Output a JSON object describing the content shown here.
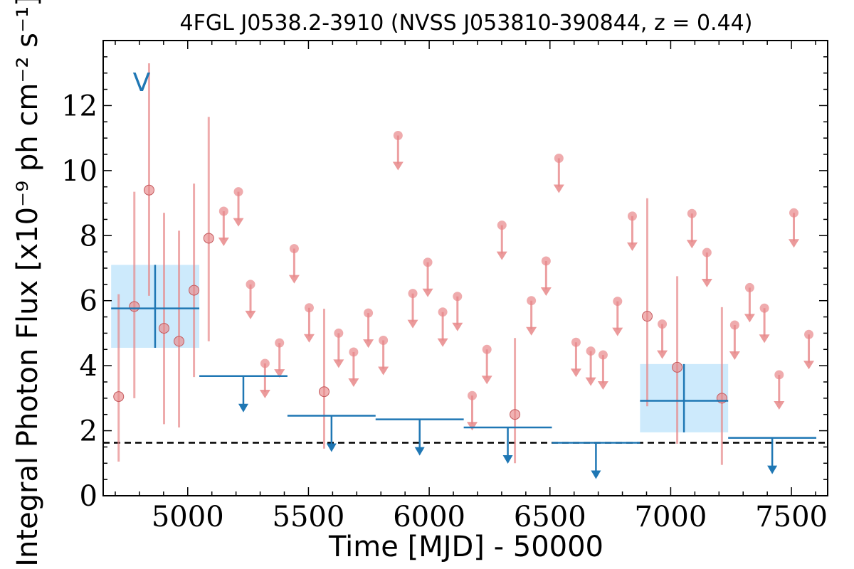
{
  "chart_data": {
    "type": "scatter",
    "title": "4FGL J0538.2-3910 (NVSS J053810-390844, z = 0.44)",
    "xlabel": "Time [MJD] - 50000",
    "ylabel": "Integral Photon Flux [x10⁻⁹ ph cm⁻² s⁻¹]",
    "xlim": [
      4650,
      7650
    ],
    "ylim": [
      0,
      14
    ],
    "x_ticks": [
      5000,
      5500,
      6000,
      6500,
      7000,
      7500
    ],
    "y_ticks": [
      0,
      2,
      4,
      6,
      8,
      10,
      12
    ],
    "marker_label": "V",
    "baseline": 1.63,
    "colors": {
      "short_bins": "#e8888a",
      "long_bins": "#1f77b4",
      "highlight": "#cdeafc",
      "baseline": "#000000"
    },
    "short_detections": [
      {
        "x": 4714,
        "y": 3.05,
        "lo": 1.05,
        "hi": 6.2
      },
      {
        "x": 4779,
        "y": 5.82,
        "lo": 3.0,
        "hi": 9.35
      },
      {
        "x": 4840,
        "y": 9.4,
        "lo": 6.15,
        "hi": 13.3
      },
      {
        "x": 4902,
        "y": 5.15,
        "lo": 2.2,
        "hi": 8.7
      },
      {
        "x": 4964,
        "y": 4.75,
        "lo": 2.1,
        "hi": 8.15
      },
      {
        "x": 5026,
        "y": 6.32,
        "lo": 3.65,
        "hi": 9.6
      },
      {
        "x": 5087,
        "y": 7.92,
        "lo": 4.75,
        "hi": 11.65
      },
      {
        "x": 5565,
        "y": 3.2,
        "lo": 1.45,
        "hi": 5.75
      },
      {
        "x": 6355,
        "y": 2.5,
        "lo": 1.0,
        "hi": 4.85
      },
      {
        "x": 6903,
        "y": 5.52,
        "lo": 2.75,
        "hi": 9.15
      },
      {
        "x": 7027,
        "y": 3.95,
        "lo": 1.6,
        "hi": 6.75
      },
      {
        "x": 7212,
        "y": 3.0,
        "lo": 0.95,
        "hi": 5.8
      }
    ],
    "short_upper_limits": [
      {
        "x": 5149,
        "y": 8.75
      },
      {
        "x": 5210,
        "y": 9.35
      },
      {
        "x": 5260,
        "y": 6.5
      },
      {
        "x": 5320,
        "y": 4.07
      },
      {
        "x": 5380,
        "y": 4.7
      },
      {
        "x": 5441,
        "y": 7.6
      },
      {
        "x": 5503,
        "y": 5.78
      },
      {
        "x": 5625,
        "y": 5.0
      },
      {
        "x": 5687,
        "y": 4.42
      },
      {
        "x": 5748,
        "y": 5.62
      },
      {
        "x": 5810,
        "y": 4.78
      },
      {
        "x": 5871,
        "y": 11.08
      },
      {
        "x": 5932,
        "y": 6.22
      },
      {
        "x": 5994,
        "y": 7.18
      },
      {
        "x": 6056,
        "y": 5.65
      },
      {
        "x": 6117,
        "y": 6.13
      },
      {
        "x": 6178,
        "y": 3.08
      },
      {
        "x": 6239,
        "y": 4.5
      },
      {
        "x": 6301,
        "y": 8.32
      },
      {
        "x": 6423,
        "y": 6.0
      },
      {
        "x": 6484,
        "y": 7.22
      },
      {
        "x": 6537,
        "y": 10.38
      },
      {
        "x": 6608,
        "y": 4.72
      },
      {
        "x": 6669,
        "y": 4.45
      },
      {
        "x": 6720,
        "y": 4.33
      },
      {
        "x": 6780,
        "y": 5.98
      },
      {
        "x": 6841,
        "y": 8.6
      },
      {
        "x": 6965,
        "y": 5.28
      },
      {
        "x": 7088,
        "y": 8.68
      },
      {
        "x": 7150,
        "y": 7.48
      },
      {
        "x": 7265,
        "y": 5.25
      },
      {
        "x": 7327,
        "y": 6.4
      },
      {
        "x": 7388,
        "y": 5.77
      },
      {
        "x": 7449,
        "y": 3.72
      },
      {
        "x": 7510,
        "y": 8.7
      },
      {
        "x": 7572,
        "y": 4.96
      }
    ],
    "long_detections": [
      {
        "x0": 4683,
        "x1": 5048,
        "x": 4865,
        "y": 5.76,
        "lo": 4.55,
        "hi": 7.1
      },
      {
        "x0": 6873,
        "x1": 7238,
        "x": 7055,
        "y": 2.92,
        "lo": 1.95,
        "hi": 4.05
      }
    ],
    "long_upper_limits": [
      {
        "x0": 5048,
        "x1": 5413,
        "y": 3.68
      },
      {
        "x0": 5413,
        "x1": 5778,
        "y": 2.46
      },
      {
        "x0": 5778,
        "x1": 6143,
        "y": 2.35
      },
      {
        "x0": 6143,
        "x1": 6508,
        "y": 2.1
      },
      {
        "x0": 6508,
        "x1": 6873,
        "y": 1.63
      },
      {
        "x0": 7238,
        "x1": 7603,
        "y": 1.78
      }
    ]
  }
}
